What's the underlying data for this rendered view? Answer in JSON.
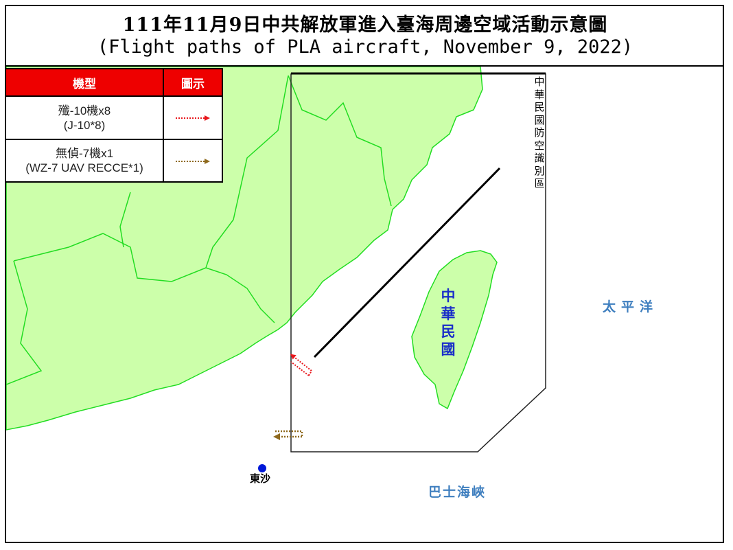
{
  "title": {
    "line1": "111年11月9日中共解放軍進入臺海周邊空域活動示意圖",
    "line2": "(Flight paths of PLA aircraft, November 9, 2022)"
  },
  "legend": {
    "headers": [
      "機型",
      "圖示"
    ],
    "rows": [
      {
        "zh": "殲-10機x8",
        "en": "(J-10*8)",
        "color": "#e8161b",
        "icon": "dotted-arrow-red"
      },
      {
        "zh": "無偵-7機x1",
        "en": "(WZ-7 UAV RECCE*1)",
        "color": "#8f6a1e",
        "icon": "dotted-arrow-brown"
      }
    ]
  },
  "map": {
    "adiz_label": "中華民國防空識別區",
    "taiwan_label": "中華民國",
    "pacific_label": "太平洋",
    "bashi_label": "巴士海峽",
    "dongsha_label": "東沙",
    "colors": {
      "land": "#ccffaa",
      "border": "#22dd22",
      "taiwan_text": "#1a2fc8",
      "sea_text": "#3f7fbf",
      "dongsha_dot": "#0018d8"
    }
  }
}
